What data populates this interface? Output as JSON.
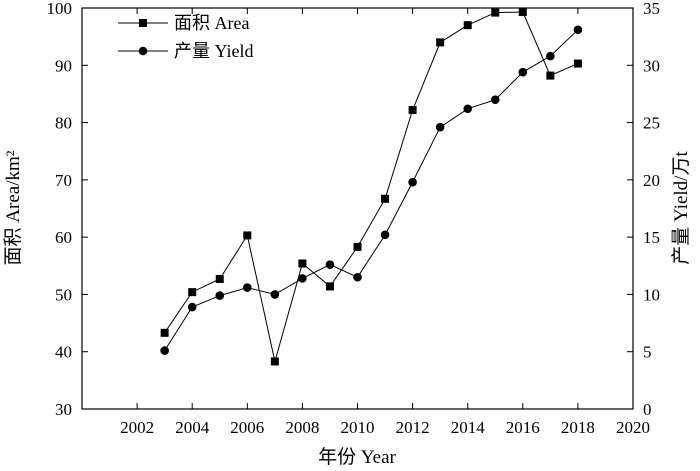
{
  "chart_data": {
    "type": "line",
    "title": "",
    "xlabel": "年份 Year",
    "ylabel_left": "面积 Area/km²",
    "ylabel_right": "产量 Yield/万t",
    "xlim": [
      2000,
      2020
    ],
    "ylim_left": [
      30,
      100
    ],
    "ylim_right": [
      0,
      35
    ],
    "x_ticks": [
      2002,
      2004,
      2006,
      2008,
      2010,
      2012,
      2014,
      2016,
      2018,
      2020
    ],
    "y_left_ticks": [
      30,
      40,
      50,
      60,
      70,
      80,
      90,
      100
    ],
    "y_right_ticks": [
      0,
      5,
      10,
      15,
      20,
      25,
      30,
      35
    ],
    "grid": false,
    "legend_position": "top-left",
    "x": [
      2003,
      2004,
      2005,
      2006,
      2007,
      2008,
      2009,
      2010,
      2011,
      2012,
      2013,
      2014,
      2015,
      2016,
      2017,
      2018
    ],
    "series": [
      {
        "name": "面积 Area",
        "axis": "left",
        "marker": "square",
        "color": "#000000",
        "values": [
          43.3,
          50.4,
          52.7,
          60.3,
          38.3,
          55.4,
          51.4,
          58.3,
          66.7,
          82.2,
          94.0,
          97.0,
          99.2,
          99.3,
          88.2,
          90.3
        ]
      },
      {
        "name": "产量 Yield",
        "axis": "right",
        "marker": "circle",
        "color": "#000000",
        "values": [
          5.1,
          8.9,
          9.9,
          10.6,
          10.0,
          11.4,
          12.6,
          11.5,
          15.2,
          19.8,
          24.6,
          26.2,
          27.0,
          29.4,
          30.8,
          33.1
        ]
      }
    ]
  }
}
